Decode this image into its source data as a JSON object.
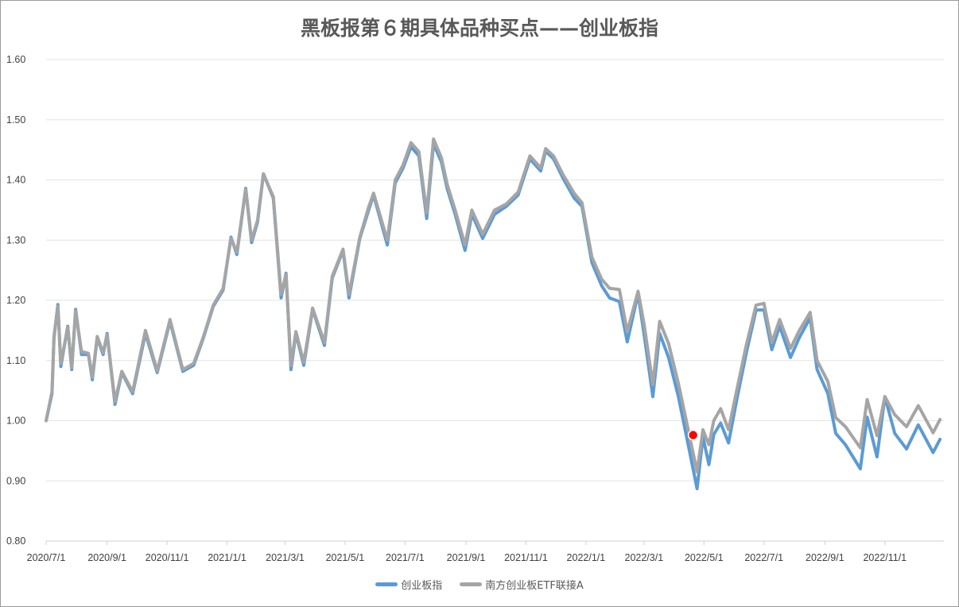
{
  "chart_data": {
    "type": "line",
    "title": "黑板报第６期具体品种买点——创业板指",
    "xlabel": "",
    "ylabel": "",
    "xlim": [
      "2020-07-01",
      "2022-12-31"
    ],
    "ylim": [
      0.8,
      1.6
    ],
    "grid": true,
    "legend_position": "bottom",
    "y_ticks": [
      "0.80",
      "0.90",
      "1.00",
      "1.10",
      "1.20",
      "1.30",
      "1.40",
      "1.50",
      "1.60"
    ],
    "x_ticks": [
      "2020/7/1",
      "2020/9/1",
      "2020/11/1",
      "2021/1/1",
      "2021/3/1",
      "2021/5/1",
      "2021/7/1",
      "2021/9/1",
      "2021/11/1",
      "2022/1/1",
      "2022/3/1",
      "2022/5/1",
      "2022/7/1",
      "2022/9/1",
      "2022/11/1"
    ],
    "x_tick_dates": [
      "2020-07-01",
      "2020-09-01",
      "2020-11-01",
      "2021-01-01",
      "2021-03-01",
      "2021-05-01",
      "2021-07-01",
      "2021-09-01",
      "2021-11-01",
      "2022-01-01",
      "2022-03-01",
      "2022-05-01",
      "2022-07-01",
      "2022-09-01",
      "2022-11-01"
    ],
    "x": [
      "2020-07-01",
      "2020-07-07",
      "2020-07-09",
      "2020-07-13",
      "2020-07-16",
      "2020-07-23",
      "2020-07-27",
      "2020-07-31",
      "2020-08-06",
      "2020-08-13",
      "2020-08-17",
      "2020-08-22",
      "2020-08-28",
      "2020-09-01",
      "2020-09-09",
      "2020-09-16",
      "2020-09-27",
      "2020-10-10",
      "2020-10-22",
      "2020-11-04",
      "2020-11-17",
      "2020-11-28",
      "2020-12-08",
      "2020-12-18",
      "2020-12-28",
      "2021-01-05",
      "2021-01-11",
      "2021-01-20",
      "2021-01-26",
      "2021-02-01",
      "2021-02-07",
      "2021-02-17",
      "2021-02-25",
      "2021-03-02",
      "2021-03-07",
      "2021-03-12",
      "2021-03-20",
      "2021-03-29",
      "2021-04-10",
      "2021-04-18",
      "2021-04-29",
      "2021-05-05",
      "2021-05-16",
      "2021-05-25",
      "2021-05-30",
      "2021-06-13",
      "2021-06-21",
      "2021-06-29",
      "2021-07-07",
      "2021-07-15",
      "2021-07-23",
      "2021-07-30",
      "2021-08-07",
      "2021-08-13",
      "2021-08-21",
      "2021-08-31",
      "2021-09-07",
      "2021-09-18",
      "2021-09-30",
      "2021-10-12",
      "2021-10-24",
      "2021-11-05",
      "2021-11-16",
      "2021-11-21",
      "2021-11-29",
      "2021-12-09",
      "2021-12-20",
      "2021-12-28",
      "2022-01-07",
      "2022-01-17",
      "2022-01-25",
      "2022-02-04",
      "2022-02-12",
      "2022-02-23",
      "2022-03-01",
      "2022-03-10",
      "2022-03-17",
      "2022-03-26",
      "2022-04-05",
      "2022-04-15",
      "2022-04-24",
      "2022-04-30",
      "2022-05-06",
      "2022-05-11",
      "2022-05-18",
      "2022-05-26",
      "2022-06-03",
      "2022-06-13",
      "2022-06-23",
      "2022-07-01",
      "2022-07-09",
      "2022-07-17",
      "2022-07-28",
      "2022-08-06",
      "2022-08-17",
      "2022-08-24",
      "2022-09-04",
      "2022-09-12",
      "2022-09-22",
      "2022-10-07",
      "2022-10-14",
      "2022-10-24",
      "2022-11-01",
      "2022-11-11",
      "2022-11-23",
      "2022-12-05",
      "2022-12-20",
      "2022-12-27"
    ],
    "series": [
      {
        "name": "创业板指",
        "color": "#5b9bd5",
        "values": [
          1.0,
          1.045,
          1.138,
          1.193,
          1.09,
          1.157,
          1.085,
          1.185,
          1.11,
          1.11,
          1.068,
          1.138,
          1.11,
          1.145,
          1.027,
          1.08,
          1.045,
          1.145,
          1.08,
          1.165,
          1.082,
          1.092,
          1.138,
          1.19,
          1.217,
          1.305,
          1.276,
          1.386,
          1.296,
          1.33,
          1.41,
          1.37,
          1.204,
          1.245,
          1.085,
          1.145,
          1.092,
          1.185,
          1.125,
          1.237,
          1.283,
          1.204,
          1.303,
          1.35,
          1.375,
          1.292,
          1.395,
          1.42,
          1.455,
          1.44,
          1.336,
          1.46,
          1.43,
          1.385,
          1.343,
          1.283,
          1.343,
          1.303,
          1.343,
          1.356,
          1.375,
          1.435,
          1.415,
          1.448,
          1.435,
          1.402,
          1.37,
          1.356,
          1.263,
          1.224,
          1.204,
          1.198,
          1.131,
          1.211,
          1.145,
          1.04,
          1.145,
          1.105,
          1.04,
          0.96,
          0.887,
          0.973,
          0.927,
          0.977,
          0.996,
          0.963,
          1.032,
          1.112,
          1.184,
          1.184,
          1.118,
          1.157,
          1.105,
          1.138,
          1.171,
          1.085,
          1.045,
          0.979,
          0.96,
          0.92,
          1.006,
          0.94,
          1.04,
          0.979,
          0.953,
          0.993,
          0.947,
          0.969
        ]
      },
      {
        "name": "南方创业板ETF联接A",
        "color": "#a5a5a5",
        "values": [
          1.0,
          1.048,
          1.14,
          1.19,
          1.095,
          1.155,
          1.088,
          1.182,
          1.115,
          1.112,
          1.072,
          1.14,
          1.113,
          1.143,
          1.032,
          1.082,
          1.048,
          1.15,
          1.083,
          1.168,
          1.085,
          1.095,
          1.14,
          1.192,
          1.22,
          1.303,
          1.28,
          1.384,
          1.3,
          1.333,
          1.41,
          1.372,
          1.21,
          1.243,
          1.092,
          1.148,
          1.097,
          1.187,
          1.13,
          1.24,
          1.285,
          1.21,
          1.305,
          1.355,
          1.378,
          1.3,
          1.4,
          1.425,
          1.462,
          1.447,
          1.345,
          1.468,
          1.437,
          1.392,
          1.35,
          1.292,
          1.35,
          1.31,
          1.35,
          1.36,
          1.38,
          1.44,
          1.42,
          1.452,
          1.44,
          1.408,
          1.378,
          1.362,
          1.272,
          1.235,
          1.22,
          1.218,
          1.148,
          1.215,
          1.162,
          1.06,
          1.165,
          1.128,
          1.062,
          0.985,
          0.915,
          0.985,
          0.96,
          1.0,
          1.02,
          0.985,
          1.048,
          1.125,
          1.192,
          1.195,
          1.13,
          1.168,
          1.12,
          1.15,
          1.18,
          1.1,
          1.065,
          1.005,
          0.99,
          0.955,
          1.035,
          0.975,
          1.04,
          1.01,
          0.99,
          1.025,
          0.98,
          1.002
        ]
      }
    ],
    "highlight_point": {
      "x": "2022-04-20",
      "y": 0.976,
      "color": "#ff0000"
    }
  }
}
